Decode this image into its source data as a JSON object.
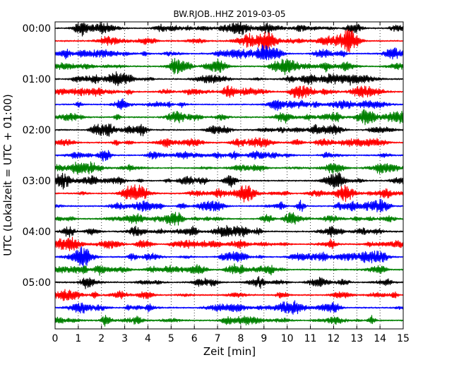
{
  "chart_data": {
    "type": "line",
    "title": "BW.RJOB..HHZ 2019-03-05",
    "xlabel": "Zeit  [min]",
    "ylabel": "UTC (Lokalzeit = UTC + 01:00)",
    "xlim": [
      0,
      15
    ],
    "x_ticks": [
      "0",
      "1",
      "2",
      "3",
      "4",
      "5",
      "6",
      "7",
      "8",
      "9",
      "10",
      "11",
      "12",
      "13",
      "14",
      "15"
    ],
    "y_ticks": [
      "00:00",
      "01:00",
      "02:00",
      "03:00",
      "04:00",
      "05:00"
    ],
    "grid": "vertical dotted lines at each minute",
    "trace_interval_minutes": 15,
    "trace_count": 24,
    "trace_colors": [
      "#000000",
      "#ff0000",
      "#0000ff",
      "#008000"
    ],
    "series": [
      {
        "start": "00:00"
      },
      {
        "start": "00:15"
      },
      {
        "start": "00:30"
      },
      {
        "start": "00:45"
      },
      {
        "start": "01:00"
      },
      {
        "start": "01:15"
      },
      {
        "start": "01:30"
      },
      {
        "start": "01:45"
      },
      {
        "start": "02:00"
      },
      {
        "start": "02:15"
      },
      {
        "start": "02:30"
      },
      {
        "start": "02:45"
      },
      {
        "start": "03:00"
      },
      {
        "start": "03:15"
      },
      {
        "start": "03:30"
      },
      {
        "start": "03:45"
      },
      {
        "start": "04:00"
      },
      {
        "start": "04:15"
      },
      {
        "start": "04:30"
      },
      {
        "start": "04:45"
      },
      {
        "start": "05:00"
      },
      {
        "start": "05:15"
      },
      {
        "start": "05:30"
      },
      {
        "start": "05:45"
      }
    ]
  }
}
